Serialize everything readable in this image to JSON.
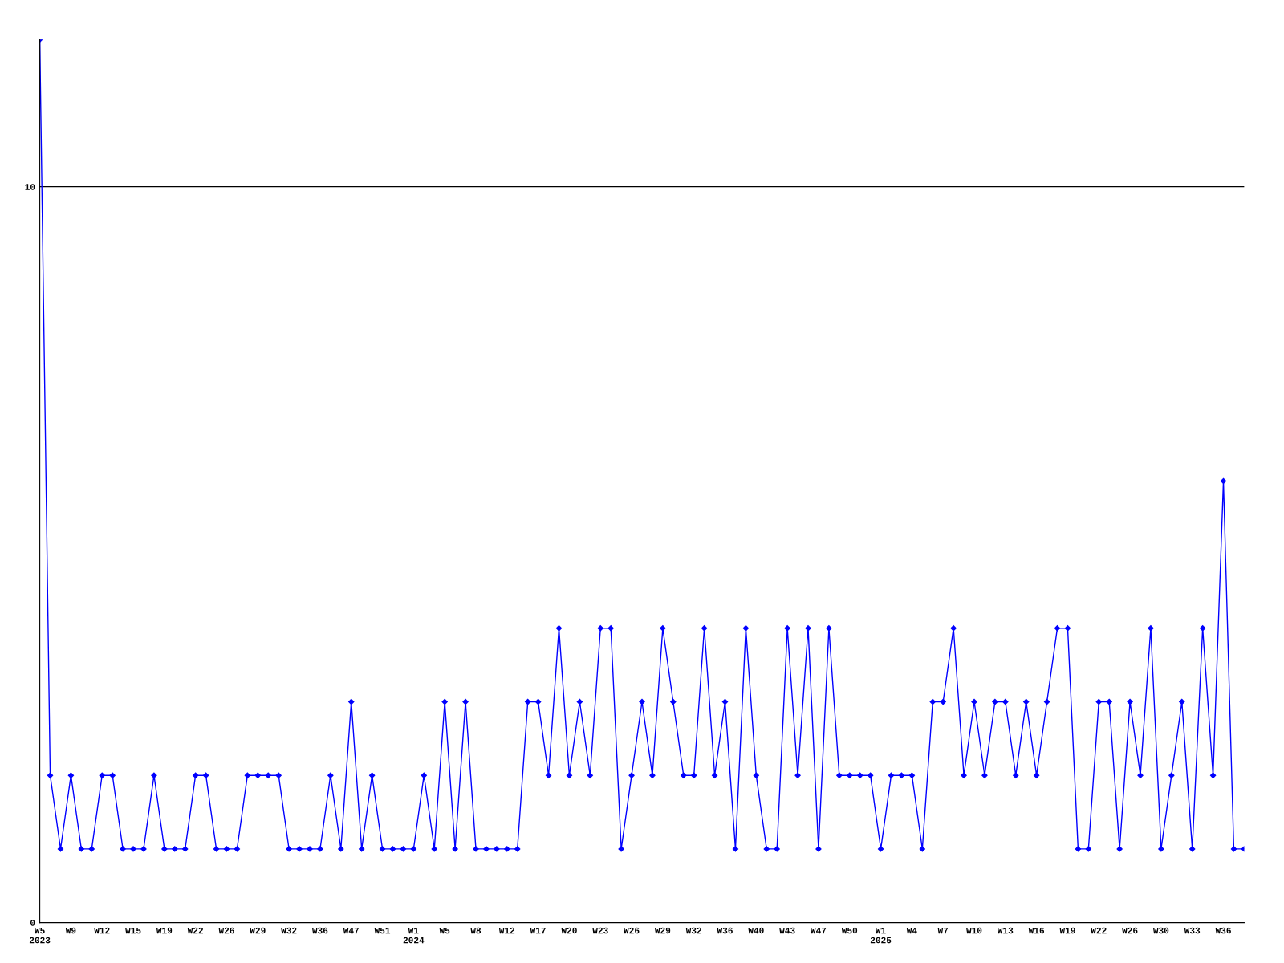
{
  "chart_data": {
    "type": "line",
    "categories": [
      "W5\n2023",
      null,
      null,
      "W9",
      null,
      null,
      "W12",
      null,
      null,
      "W15",
      null,
      null,
      "W19",
      null,
      null,
      "W22",
      null,
      null,
      "W26",
      null,
      null,
      "W29",
      null,
      null,
      "W32",
      null,
      null,
      "W36",
      null,
      null,
      "W47",
      null,
      null,
      "W51",
      null,
      null,
      "W1\n2024",
      null,
      null,
      "W5",
      null,
      null,
      "W8",
      null,
      null,
      "W12",
      null,
      null,
      "W17",
      null,
      null,
      "W20",
      null,
      null,
      "W23",
      null,
      null,
      "W26",
      null,
      null,
      "W29",
      null,
      null,
      "W32",
      null,
      null,
      "W36",
      null,
      null,
      "W40",
      null,
      null,
      "W43",
      null,
      null,
      "W47",
      null,
      null,
      "W50",
      null,
      null,
      "W1\n2025",
      null,
      null,
      "W4",
      null,
      null,
      "W7",
      null,
      null,
      "W10",
      null,
      null,
      "W13",
      null,
      null,
      "W16",
      null,
      null,
      "W19",
      null,
      null,
      "W22",
      null,
      null,
      "W26",
      null,
      null,
      "W30",
      null,
      null,
      "W33",
      null,
      null,
      "W36",
      null,
      null
    ],
    "series": [
      {
        "color": "#0000ff",
        "values": [
          12,
          2,
          1,
          2,
          1,
          1,
          2,
          2,
          1,
          1,
          1,
          2,
          1,
          1,
          1,
          2,
          2,
          1,
          1,
          1,
          2,
          2,
          2,
          2,
          1,
          1,
          1,
          1,
          2,
          1,
          3,
          1,
          2,
          1,
          1,
          1,
          1,
          2,
          1,
          3,
          1,
          3,
          1,
          1,
          1,
          1,
          1,
          3,
          3,
          2,
          4,
          2,
          3,
          2,
          4,
          4,
          1,
          2,
          3,
          2,
          4,
          3,
          2,
          2,
          4,
          2,
          3,
          1,
          4,
          2,
          1,
          1,
          4,
          2,
          4,
          1,
          4,
          2,
          2,
          2,
          2,
          1,
          2,
          2,
          2,
          1,
          3,
          3,
          4,
          2,
          3,
          2,
          3,
          3,
          2,
          3,
          2,
          3,
          4,
          4,
          1,
          1,
          3,
          3,
          1,
          3,
          2,
          4,
          1,
          2,
          3,
          1,
          4,
          2,
          6,
          1,
          1
        ]
      }
    ],
    "ylim": [
      0,
      12
    ],
    "yticks": [
      0,
      10
    ],
    "grid": "y",
    "marker": "diamond",
    "line_style": "solid"
  }
}
